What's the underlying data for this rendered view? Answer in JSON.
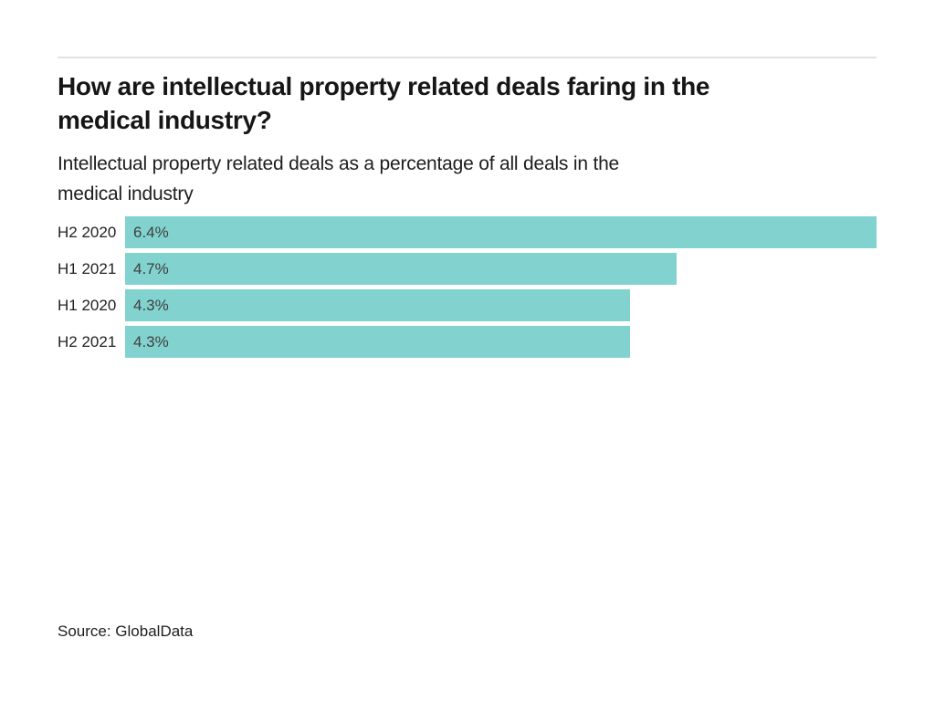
{
  "header": {
    "title": "How are intellectual property related deals faring in the medical industry?",
    "title_lines": [
      "How are intellectual property related deals faring in the",
      "medical industry?"
    ],
    "subtitle": "Intellectual property related deals as a percentage of all deals in the medical industry",
    "subtitle_lines": [
      "Intellectual property related deals as a percentage of all deals in the",
      "medical industry"
    ]
  },
  "chart_data": {
    "type": "bar",
    "orientation": "horizontal",
    "title": "How are intellectual property related deals faring in the medical industry?",
    "subtitle": "Intellectual property related deals as a percentage of all deals in the medical industry",
    "categories": [
      "H2 2020",
      "H1 2021",
      "H1 2020",
      "H2 2021"
    ],
    "values": [
      6.4,
      4.7,
      4.3,
      4.3
    ],
    "display_values": [
      "6.4%",
      "4.7%",
      "4.3%",
      "4.3%"
    ],
    "xlabel": "",
    "ylabel": "",
    "xlim": [
      0,
      6.4
    ],
    "grid": false,
    "legend": false,
    "bar_color": "#82d2cf",
    "value_label_position": "inside-left"
  },
  "footer": {
    "source": "Source: GlobalData"
  }
}
